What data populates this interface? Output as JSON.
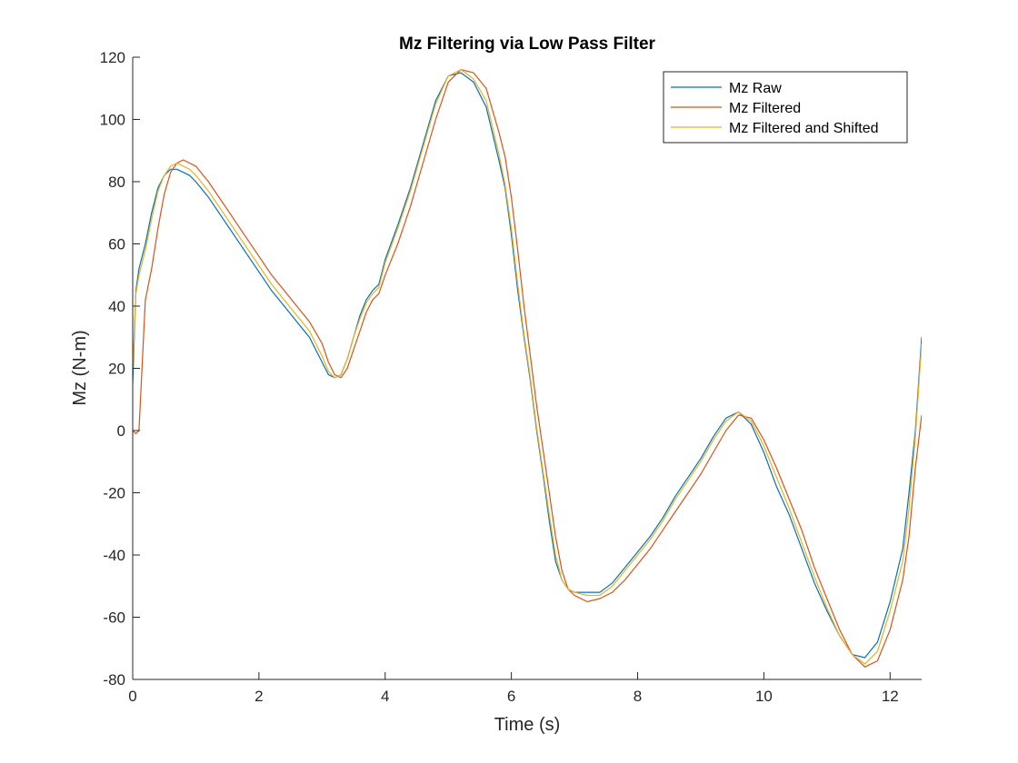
{
  "chart_data": {
    "type": "line",
    "title": "Mz Filtering via Low Pass Filter",
    "xlabel": "Time (s)",
    "ylabel": "Mz (N-m)",
    "xlim": [
      0,
      12.5
    ],
    "ylim": [
      -80,
      120
    ],
    "xticks": [
      0,
      2,
      4,
      6,
      8,
      10,
      12
    ],
    "yticks": [
      -80,
      -60,
      -40,
      -20,
      0,
      20,
      40,
      60,
      80,
      100,
      120
    ],
    "grid": false,
    "legend_position": "top-right",
    "series": [
      {
        "name": "Mz Raw",
        "color": "#0072BD",
        "x": [
          0,
          0.05,
          0.1,
          0.2,
          0.3,
          0.4,
          0.5,
          0.6,
          0.7,
          0.8,
          0.9,
          1.0,
          1.2,
          1.4,
          1.6,
          1.8,
          2.0,
          2.2,
          2.4,
          2.6,
          2.8,
          3.0,
          3.1,
          3.2,
          3.3,
          3.4,
          3.5,
          3.6,
          3.7,
          3.8,
          3.9,
          4.0,
          4.2,
          4.4,
          4.6,
          4.8,
          5.0,
          5.2,
          5.4,
          5.6,
          5.8,
          5.9,
          6.0,
          6.1,
          6.2,
          6.3,
          6.4,
          6.5,
          6.6,
          6.7,
          6.8,
          6.9,
          7.0,
          7.2,
          7.4,
          7.6,
          7.8,
          8.0,
          8.2,
          8.4,
          8.6,
          8.8,
          9.0,
          9.2,
          9.4,
          9.6,
          9.8,
          10.0,
          10.2,
          10.4,
          10.6,
          10.8,
          11.0,
          11.2,
          11.4,
          11.6,
          11.8,
          12.0,
          12.2,
          12.3,
          12.4,
          12.5
        ],
        "y": [
          15,
          45,
          52,
          60,
          70,
          78,
          82,
          84,
          84,
          83,
          82,
          80,
          75,
          69,
          63,
          57,
          51,
          45,
          40,
          35,
          30,
          22,
          18,
          17,
          18,
          23,
          30,
          37,
          42,
          45,
          47,
          55,
          66,
          78,
          92,
          106,
          114,
          115,
          112,
          104,
          87,
          78,
          63,
          45,
          30,
          16,
          0,
          -14,
          -29,
          -42,
          -48,
          -51,
          -52,
          -52,
          -52,
          -49,
          -44,
          -39,
          -34,
          -28,
          -21,
          -15,
          -9,
          -2,
          4,
          6,
          2,
          -7,
          -18,
          -27,
          -38,
          -49,
          -58,
          -66,
          -72,
          -73,
          -68,
          -55,
          -38,
          -20,
          0,
          30
        ]
      },
      {
        "name": "Mz Filtered",
        "color": "#D95319",
        "x": [
          0,
          0.05,
          0.1,
          0.2,
          0.3,
          0.4,
          0.5,
          0.6,
          0.7,
          0.8,
          0.9,
          1.0,
          1.2,
          1.4,
          1.6,
          1.8,
          2.0,
          2.2,
          2.4,
          2.6,
          2.8,
          3.0,
          3.1,
          3.2,
          3.3,
          3.4,
          3.5,
          3.6,
          3.7,
          3.8,
          3.9,
          4.0,
          4.2,
          4.4,
          4.6,
          4.8,
          5.0,
          5.2,
          5.4,
          5.6,
          5.8,
          5.9,
          6.0,
          6.1,
          6.2,
          6.3,
          6.4,
          6.5,
          6.6,
          6.7,
          6.8,
          6.9,
          7.0,
          7.2,
          7.4,
          7.6,
          7.8,
          8.0,
          8.2,
          8.4,
          8.6,
          8.8,
          9.0,
          9.2,
          9.4,
          9.6,
          9.8,
          10.0,
          10.2,
          10.4,
          10.6,
          10.8,
          11.0,
          11.2,
          11.4,
          11.6,
          11.8,
          12.0,
          12.2,
          12.3,
          12.4,
          12.5
        ],
        "y": [
          0,
          -1,
          0,
          42,
          52,
          65,
          76,
          83,
          86,
          87,
          86,
          85,
          80,
          74,
          68,
          62,
          56,
          50,
          45,
          40,
          35,
          28,
          22,
          18,
          17,
          20,
          26,
          32,
          38,
          42,
          44,
          50,
          60,
          72,
          86,
          100,
          112,
          116,
          115,
          110,
          96,
          88,
          75,
          58,
          40,
          24,
          8,
          -6,
          -20,
          -34,
          -45,
          -51,
          -53,
          -55,
          -54,
          -52,
          -48,
          -43,
          -38,
          -32,
          -26,
          -20,
          -14,
          -7,
          0,
          5,
          4,
          -3,
          -12,
          -22,
          -32,
          -44,
          -54,
          -64,
          -72,
          -76,
          -74,
          -64,
          -48,
          -34,
          -12,
          5
        ]
      },
      {
        "name": "Mz Filtered and Shifted",
        "color": "#EDB120",
        "x": [
          0,
          0.05,
          0.1,
          0.2,
          0.3,
          0.4,
          0.5,
          0.6,
          0.7,
          0.8,
          0.9,
          1.0,
          1.2,
          1.4,
          1.6,
          1.8,
          2.0,
          2.2,
          2.4,
          2.6,
          2.8,
          3.0,
          3.1,
          3.2,
          3.3,
          3.4,
          3.5,
          3.6,
          3.7,
          3.8,
          3.9,
          4.0,
          4.2,
          4.4,
          4.6,
          4.8,
          5.0,
          5.2,
          5.4,
          5.6,
          5.8,
          5.9,
          6.0,
          6.1,
          6.2,
          6.3,
          6.4,
          6.5,
          6.6,
          6.7,
          6.8,
          6.9,
          7.0,
          7.2,
          7.4,
          7.6,
          7.8,
          8.0,
          8.2,
          8.4,
          8.6,
          8.8,
          9.0,
          9.2,
          9.4,
          9.6,
          9.8,
          10.0,
          10.2,
          10.4,
          10.6,
          10.8,
          11.0,
          11.2,
          11.4,
          11.6,
          11.8,
          12.0,
          12.2,
          12.3,
          12.4,
          12.5
        ],
        "y": [
          20,
          44,
          50,
          58,
          68,
          77,
          82,
          85,
          86,
          85,
          84,
          82,
          77,
          71,
          65,
          59,
          53,
          47,
          42,
          37,
          32,
          24,
          19,
          17,
          18,
          23,
          30,
          36,
          41,
          44,
          46,
          54,
          65,
          77,
          91,
          105,
          114,
          116,
          113,
          106,
          89,
          79,
          65,
          47,
          31,
          17,
          1,
          -13,
          -27,
          -40,
          -48,
          -51,
          -52,
          -53,
          -53,
          -50,
          -45,
          -40,
          -35,
          -29,
          -22,
          -16,
          -10,
          -3,
          3,
          6,
          3,
          -5,
          -15,
          -25,
          -36,
          -47,
          -57,
          -66,
          -72,
          -75,
          -71,
          -58,
          -42,
          -25,
          -2,
          28
        ]
      }
    ]
  }
}
